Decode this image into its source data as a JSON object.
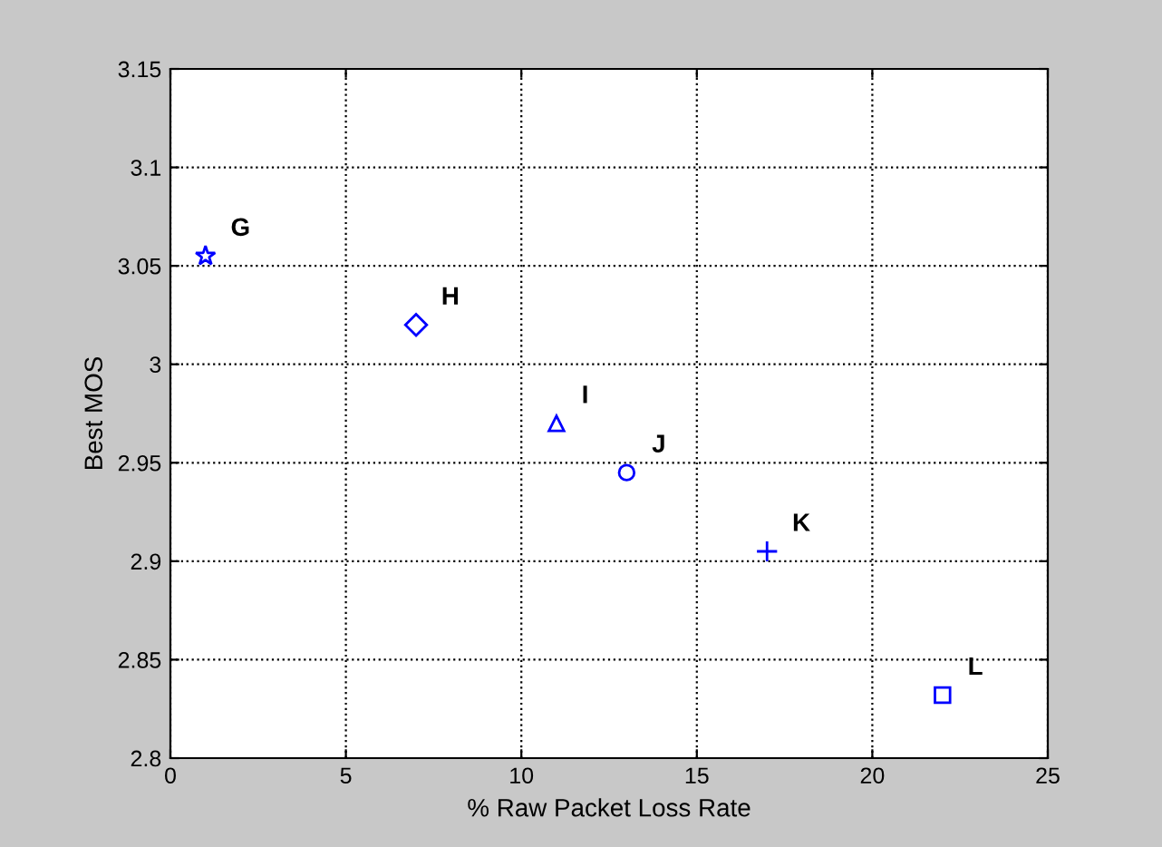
{
  "chart_data": {
    "type": "scatter",
    "xlabel": "% Raw Packet Loss Rate",
    "ylabel": "Best MOS",
    "xlim": [
      0,
      25
    ],
    "xticks": [
      0,
      5,
      10,
      15,
      20,
      25
    ],
    "ylim": [
      2.8,
      3.15
    ],
    "yticks": [
      2.8,
      2.85,
      2.9,
      2.95,
      3,
      3.05,
      3.1,
      3.15
    ],
    "grid": true,
    "line_style": "dotted",
    "series": [
      {
        "name": "G",
        "color": "#0000ff",
        "marker": "star",
        "x": [
          1
        ],
        "values": [
          3.055
        ]
      },
      {
        "name": "H",
        "color": "#0000ff",
        "marker": "diamond",
        "x": [
          7
        ],
        "values": [
          3.02
        ]
      },
      {
        "name": "I",
        "color": "#0000ff",
        "marker": "triangle",
        "x": [
          11
        ],
        "values": [
          2.97
        ]
      },
      {
        "name": "J",
        "color": "#0000ff",
        "marker": "circle",
        "x": [
          13
        ],
        "values": [
          2.945
        ]
      },
      {
        "name": "K",
        "color": "#0000ff",
        "marker": "cross",
        "x": [
          17
        ],
        "values": [
          2.905
        ]
      },
      {
        "name": "L",
        "color": "#0000ff",
        "marker": "square",
        "x": [
          22
        ],
        "values": [
          2.832
        ]
      }
    ]
  }
}
